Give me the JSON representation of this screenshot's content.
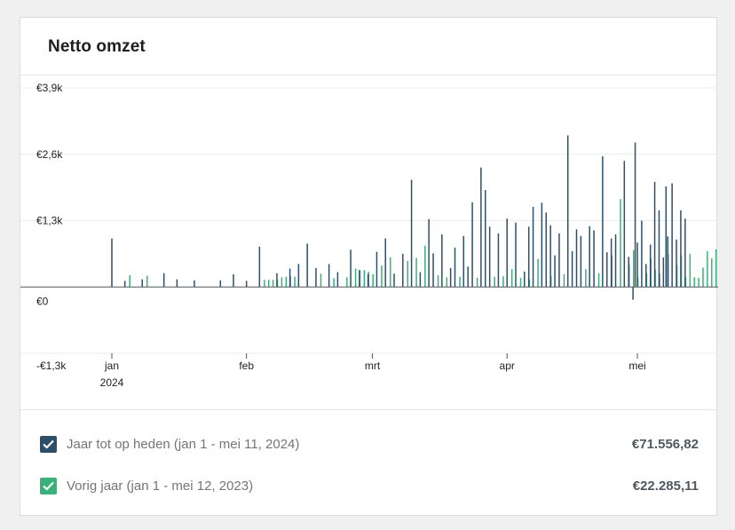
{
  "card": {
    "title": "Netto omzet"
  },
  "legend": [
    {
      "label": "Jaar tot op heden (jan 1 - mei 11, 2024)",
      "value": "€71.556,82",
      "color": "#2d4f6a",
      "checked": true
    },
    {
      "label": "Vorig jaar (jan 1 - mei 12, 2023)",
      "value": "€22.285,11",
      "color": "#38b27a",
      "checked": true
    }
  ],
  "chart_data": {
    "type": "bar",
    "title": "Netto omzet",
    "ylim": [
      -1300,
      3900
    ],
    "yticks": [
      {
        "value": 3900,
        "label": "€3,9k"
      },
      {
        "value": 2600,
        "label": "€2,6k"
      },
      {
        "value": 1300,
        "label": "€1,3k"
      },
      {
        "value": 0,
        "label": "€0"
      },
      {
        "value": -1300,
        "label": "-€1,3k"
      }
    ],
    "xticks": [
      {
        "day": 1,
        "label": "jan",
        "sublabel": "2024"
      },
      {
        "day": 32,
        "label": "feb",
        "sublabel": ""
      },
      {
        "day": 61,
        "label": "mrt",
        "sublabel": ""
      },
      {
        "day": 92,
        "label": "apr",
        "sublabel": ""
      },
      {
        "day": 122,
        "label": "mei",
        "sublabel": ""
      }
    ],
    "grid": true,
    "series": [
      {
        "name": "Jaar tot op heden (jan 1 - mei 11, 2024)",
        "color": "#2d4f6a",
        "points": [
          [
            1,
            950
          ],
          [
            4,
            120
          ],
          [
            8,
            150
          ],
          [
            13,
            270
          ],
          [
            16,
            150
          ],
          [
            20,
            130
          ],
          [
            26,
            130
          ],
          [
            29,
            250
          ],
          [
            32,
            120
          ],
          [
            35,
            790
          ],
          [
            39,
            270
          ],
          [
            42,
            360
          ],
          [
            44,
            450
          ],
          [
            46,
            850
          ],
          [
            48,
            370
          ],
          [
            51,
            450
          ],
          [
            53,
            290
          ],
          [
            56,
            730
          ],
          [
            58,
            330
          ],
          [
            60,
            250
          ],
          [
            62,
            690
          ],
          [
            64,
            950
          ],
          [
            66,
            260
          ],
          [
            68,
            650
          ],
          [
            70,
            2100
          ],
          [
            72,
            290
          ],
          [
            74,
            1330
          ],
          [
            75,
            660
          ],
          [
            77,
            1030
          ],
          [
            79,
            370
          ],
          [
            80,
            770
          ],
          [
            82,
            1000
          ],
          [
            83,
            400
          ],
          [
            84,
            1660
          ],
          [
            86,
            2340
          ],
          [
            87,
            1900
          ],
          [
            88,
            1180
          ],
          [
            90,
            1050
          ],
          [
            92,
            1340
          ],
          [
            94,
            1260
          ],
          [
            96,
            300
          ],
          [
            97,
            1180
          ],
          [
            98,
            1570
          ],
          [
            100,
            1650
          ],
          [
            101,
            1460
          ],
          [
            102,
            1210
          ],
          [
            103,
            620
          ],
          [
            104,
            1050
          ],
          [
            106,
            2970
          ],
          [
            107,
            700
          ],
          [
            108,
            1130
          ],
          [
            109,
            1000
          ],
          [
            111,
            1190
          ],
          [
            112,
            1110
          ],
          [
            114,
            2560
          ],
          [
            115,
            680
          ],
          [
            116,
            950
          ],
          [
            117,
            1030
          ],
          [
            119,
            2470
          ],
          [
            120,
            590
          ],
          [
            121,
            -250
          ],
          [
            121.5,
            2830
          ],
          [
            122,
            870
          ],
          [
            123,
            1300
          ],
          [
            124,
            450
          ],
          [
            125,
            830
          ],
          [
            126,
            2060
          ],
          [
            127,
            1500
          ],
          [
            128,
            580
          ],
          [
            128.6,
            1970
          ],
          [
            129,
            990
          ],
          [
            130,
            2030
          ],
          [
            131,
            930
          ],
          [
            132,
            1500
          ],
          [
            133,
            1340
          ]
        ]
      },
      {
        "name": "Vorig jaar (jan 1 - mei 12, 2023)",
        "color": "#38b27a",
        "points": [
          [
            5,
            230
          ],
          [
            9,
            220
          ],
          [
            36,
            140
          ],
          [
            37,
            140
          ],
          [
            38,
            140
          ],
          [
            39,
            140
          ],
          [
            40,
            190
          ],
          [
            41,
            200
          ],
          [
            42,
            210
          ],
          [
            43,
            200
          ],
          [
            49,
            260
          ],
          [
            52,
            170
          ],
          [
            55,
            190
          ],
          [
            57,
            360
          ],
          [
            58,
            330
          ],
          [
            59,
            330
          ],
          [
            60,
            300
          ],
          [
            61,
            250
          ],
          [
            63,
            420
          ],
          [
            65,
            580
          ],
          [
            69,
            510
          ],
          [
            71,
            570
          ],
          [
            73,
            810
          ],
          [
            76,
            230
          ],
          [
            78,
            190
          ],
          [
            81,
            200
          ],
          [
            85,
            180
          ],
          [
            89,
            200
          ],
          [
            91,
            210
          ],
          [
            93,
            350
          ],
          [
            95,
            180
          ],
          [
            97,
            150
          ],
          [
            99,
            550
          ],
          [
            102,
            210
          ],
          [
            105,
            250
          ],
          [
            110,
            350
          ],
          [
            113,
            270
          ],
          [
            116,
            620
          ],
          [
            118,
            1720
          ],
          [
            120,
            440
          ],
          [
            121,
            720
          ],
          [
            122,
            180
          ],
          [
            124,
            270
          ],
          [
            125,
            560
          ],
          [
            126,
            340
          ],
          [
            127,
            260
          ],
          [
            129,
            650
          ],
          [
            131,
            430
          ],
          [
            132,
            620
          ],
          [
            133,
            190
          ],
          [
            134,
            650
          ],
          [
            135,
            190
          ],
          [
            136,
            180
          ],
          [
            137,
            380
          ],
          [
            138,
            700
          ],
          [
            139,
            560
          ],
          [
            140,
            740
          ]
        ]
      }
    ]
  }
}
